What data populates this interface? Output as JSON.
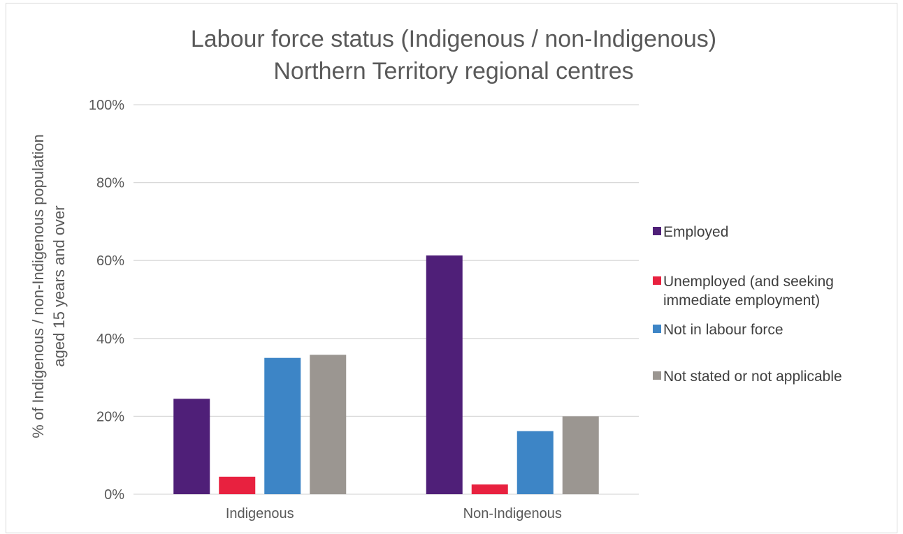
{
  "chart_data": {
    "type": "bar",
    "title_lines": [
      "Labour force status (Indigenous / non-Indigenous)",
      "Northern Territory regional centres"
    ],
    "ylabel_lines": [
      "% of Indigenous / non-Indigenous population",
      "aged 15 years and over"
    ],
    "xlabel": "",
    "categories": [
      "Indigenous",
      "Non-Indigenous"
    ],
    "ylim": [
      0,
      100
    ],
    "yticks": [
      "0%",
      "20%",
      "40%",
      "60%",
      "80%",
      "100%"
    ],
    "ytick_values": [
      0,
      20,
      40,
      60,
      80,
      100
    ],
    "grid": true,
    "legend_position": "right",
    "series": [
      {
        "name": "Employed",
        "values": [
          24.5,
          61.3
        ],
        "color": "#4f1f78"
      },
      {
        "name": "Unemployed (and seeking immediate employment)",
        "legend_lines": [
          "Unemployed (and seeking",
          "immediate employment)"
        ],
        "values": [
          4.5,
          2.5
        ],
        "color": "#e8213f"
      },
      {
        "name": "Not in labour force",
        "values": [
          35.0,
          16.2
        ],
        "color": "#3d85c6"
      },
      {
        "name": "Not stated or not applicable",
        "values": [
          35.8,
          20.0
        ],
        "color": "#9b9691"
      }
    ]
  }
}
